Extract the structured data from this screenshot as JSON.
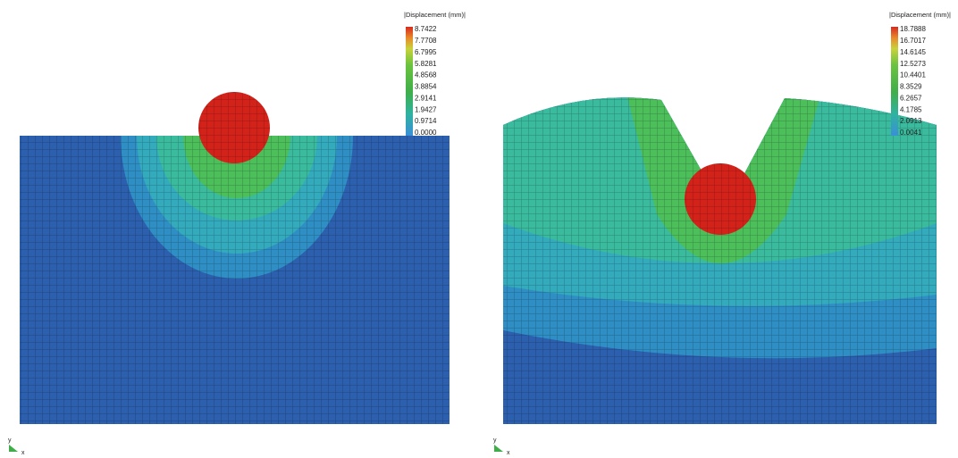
{
  "panels": [
    {
      "legend_title": "|Displacement (mm)|",
      "legend_labels": [
        "8.7422",
        "7.7708",
        "6.7995",
        "5.8281",
        "4.8568",
        "3.8854",
        "2.9141",
        "1.9427",
        "0.9714",
        "0.0000"
      ],
      "axis_labels": {
        "y": "y",
        "x": "x"
      }
    },
    {
      "legend_title": "|Displacement (mm)|",
      "legend_labels": [
        "18.7888",
        "16.7017",
        "14.6145",
        "12.5273",
        "10.4401",
        "8.3529",
        "6.2657",
        "4.1785",
        "2.0913",
        "0.0041"
      ],
      "axis_labels": {
        "y": "y",
        "x": "x"
      }
    }
  ]
}
